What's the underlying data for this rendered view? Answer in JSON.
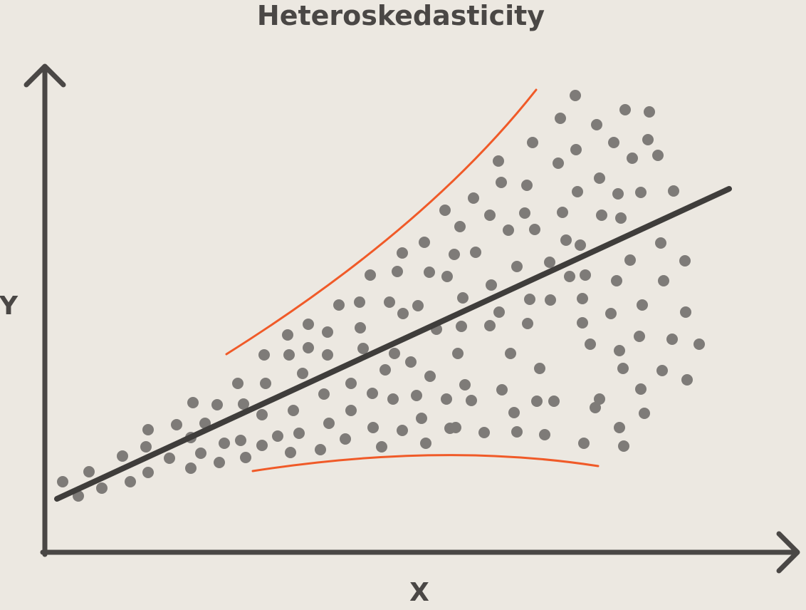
{
  "title": "Heteroskedasticity",
  "x_axis_label": "X",
  "y_axis_label": "Y",
  "colors": {
    "background": "#ECE8E1",
    "axis": "#4A4745",
    "points": "#7E7B78",
    "trend_line": "#3F3D3B",
    "envelope": "#F05A28"
  }
}
